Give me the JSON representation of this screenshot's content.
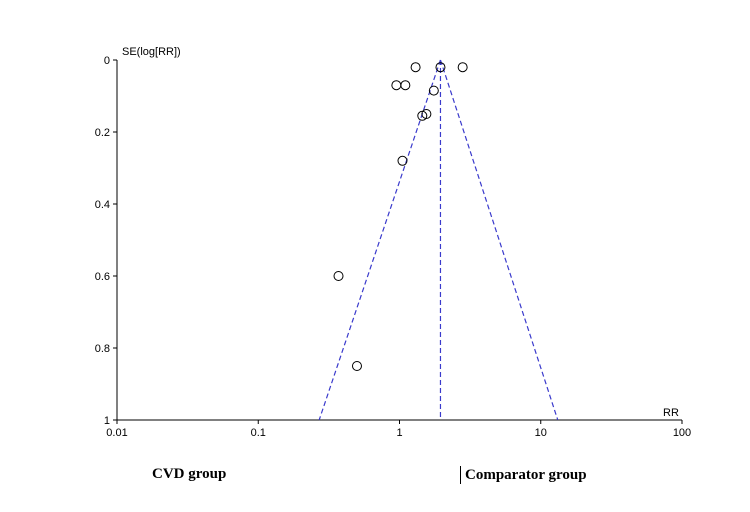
{
  "chart_data": {
    "type": "scatter",
    "xlabel": "RR",
    "ylabel": "SE(log[RR])",
    "xscale": "log",
    "xlim": [
      0.01,
      100
    ],
    "ylim": [
      0,
      1
    ],
    "y_inverted": true,
    "x_ticks": [
      "0.01",
      "0.1",
      "1",
      "10",
      "100"
    ],
    "y_ticks": [
      "0",
      "0.2",
      "0.4",
      "0.6",
      "0.8",
      "1"
    ],
    "grid": false,
    "points": [
      {
        "x": 1.3,
        "y": 0.02
      },
      {
        "x": 1.95,
        "y": 0.02
      },
      {
        "x": 2.8,
        "y": 0.02
      },
      {
        "x": 0.95,
        "y": 0.07
      },
      {
        "x": 1.1,
        "y": 0.07
      },
      {
        "x": 1.75,
        "y": 0.085
      },
      {
        "x": 1.55,
        "y": 0.15
      },
      {
        "x": 1.45,
        "y": 0.155
      },
      {
        "x": 1.05,
        "y": 0.28
      },
      {
        "x": 0.37,
        "y": 0.6
      },
      {
        "x": 0.5,
        "y": 0.85
      }
    ],
    "pooled_estimate": 1.95,
    "funnel": {
      "apex_se": 0,
      "base_se": 1,
      "lower_at_base": 0.27,
      "upper_at_base": 13.2
    }
  },
  "labels": {
    "left_group": "CVD group",
    "right_group": "Comparator group"
  },
  "colors": {
    "funnel_line": "#3a3acc",
    "axis": "#000000",
    "marker": "#000000"
  }
}
